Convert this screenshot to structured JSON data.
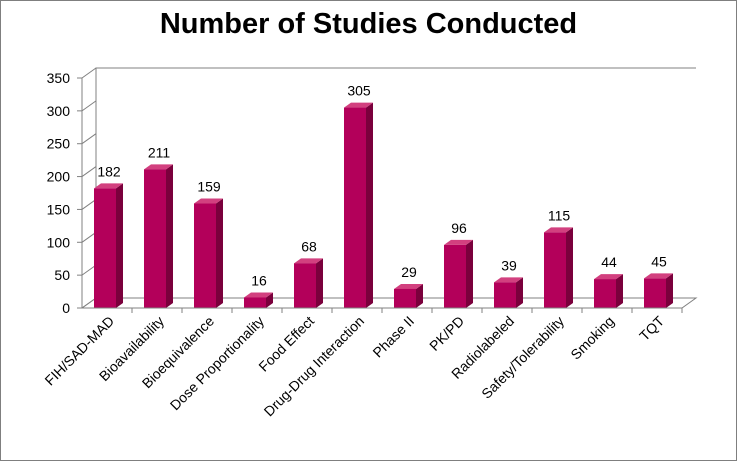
{
  "chart_data": {
    "type": "bar",
    "title": "Number of Studies Conducted",
    "categories": [
      "FIH/SAD-MAD",
      "Bioavailability",
      "Bioequivalence",
      "Dose Proportionality",
      "Food Effect",
      "Drug-Drug Interaction",
      "Phase II",
      "PK/PD",
      "Radiolabeled",
      "Safety/Tolerability",
      "Smoking",
      "TQT"
    ],
    "values": [
      182,
      211,
      159,
      16,
      68,
      305,
      29,
      96,
      39,
      115,
      44,
      45
    ],
    "ylim": [
      0,
      350
    ],
    "yticks": [
      "0",
      "50",
      "100",
      "150",
      "200",
      "250",
      "300",
      "350"
    ],
    "data_labels": [
      "182",
      "211",
      "159",
      "16",
      "68",
      "305",
      "29",
      "96",
      "39",
      "115",
      "44",
      "45"
    ],
    "xlabel": "",
    "ylabel": "",
    "grid": false,
    "legend": "none",
    "style": "3d-column",
    "colors": {
      "bar_front": "#b3005a",
      "bar_side": "#7a003c",
      "bar_top": "#d2407f",
      "wall": "#808080"
    }
  }
}
